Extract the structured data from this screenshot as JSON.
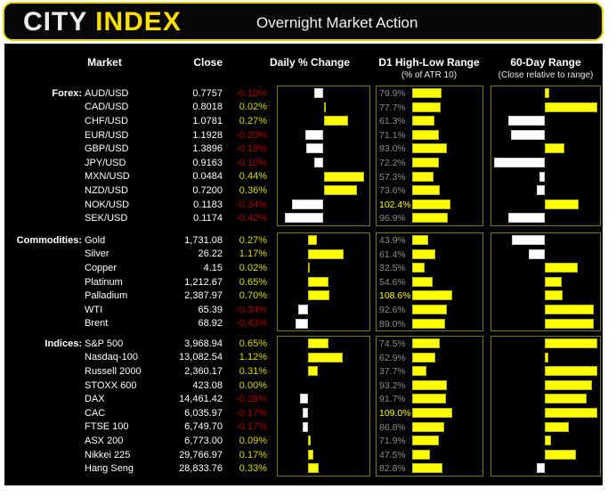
{
  "header": {
    "logo_primary": "CITY",
    "logo_accent": "INDEX",
    "title": "Overnight Market Action"
  },
  "columns": {
    "market": "Market",
    "close": "Close",
    "daily": "Daily % Change",
    "d1": "D1 High-Low Range",
    "d1_sub": "(% of ATR 10)",
    "range60": "60-Day Range",
    "range60_sub": "(Close relative to range)"
  },
  "colors": {
    "accent_yellow": "#ffdf00",
    "bar_positive": "#ffff00",
    "bar_negative": "#fdfdfd",
    "text_positive": "#dcdc00",
    "text_negative": "#b00000",
    "atr_label_gray": "#8c8c8c",
    "box_border": "#7b7b00",
    "background": "#000000"
  },
  "chart_data": {
    "type": "bar",
    "title": "Overnight Market Action",
    "legend": "none",
    "grid": false,
    "atr_axis": [
      0,
      190
    ],
    "range_axis": [
      0,
      100
    ],
    "range_center": 50,
    "sections": [
      {
        "label": "Forex:",
        "daily_axis": [
          -0.5,
          0.5
        ],
        "rows": [
          {
            "market": "AUD/USD",
            "close": "0.7757",
            "change": -0.1,
            "change_label": "-0.10%",
            "atr": 79.9,
            "range_pos": 54
          },
          {
            "market": "CAD/USD",
            "close": "0.8018",
            "change": 0.02,
            "change_label": "0.02%",
            "atr": 77.7,
            "range_pos": 100
          },
          {
            "market": "CHF/USD",
            "close": "1.0781",
            "change": 0.27,
            "change_label": "0.27%",
            "atr": 61.3,
            "range_pos": 15
          },
          {
            "market": "EUR/USD",
            "close": "1.1928",
            "change": -0.2,
            "change_label": "-0.20%",
            "atr": 71.1,
            "range_pos": 18
          },
          {
            "market": "GBP/USD",
            "close": "1.3896",
            "change": -0.19,
            "change_label": "-0.19%",
            "atr": 93.0,
            "range_pos": 69
          },
          {
            "market": "JPY/USD",
            "close": "0.9163",
            "change": -0.1,
            "change_label": "-0.10%",
            "atr": 72.2,
            "range_pos": 2
          },
          {
            "market": "MXN/USD",
            "close": "0.0484",
            "change": 0.44,
            "change_label": "0.44%",
            "atr": 57.3,
            "range_pos": 45
          },
          {
            "market": "NZD/USD",
            "close": "0.7200",
            "change": 0.36,
            "change_label": "0.36%",
            "atr": 73.6,
            "range_pos": 42
          },
          {
            "market": "NOK/USD",
            "close": "0.1183",
            "change": -0.34,
            "change_label": "-0.34%",
            "atr": 102.4,
            "range_pos": 82
          },
          {
            "market": "SEK/USD",
            "close": "0.1174",
            "change": -0.42,
            "change_label": "-0.42%",
            "atr": 96.9,
            "range_pos": 15
          }
        ]
      },
      {
        "label": "Commodities:",
        "daily_axis": [
          -1,
          2
        ],
        "rows": [
          {
            "market": "Gold",
            "close": "1,731.08",
            "change": 0.27,
            "change_label": "0.27%",
            "atr": 43.9,
            "range_pos": 19
          },
          {
            "market": "Silver",
            "close": "26.22",
            "change": 1.17,
            "change_label": "1.17%",
            "atr": 61.4,
            "range_pos": 35
          },
          {
            "market": "Copper",
            "close": "4.15",
            "change": 0.02,
            "change_label": "0.02%",
            "atr": 32.5,
            "range_pos": 81
          },
          {
            "market": "Platinum",
            "close": "1,212.67",
            "change": 0.65,
            "change_label": "0.65%",
            "atr": 54.6,
            "range_pos": 66
          },
          {
            "market": "Palladium",
            "close": "2,387.97",
            "change": 0.7,
            "change_label": "0.70%",
            "atr": 108.6,
            "range_pos": 67
          },
          {
            "market": "WTI",
            "close": "65.39",
            "change": -0.34,
            "change_label": "-0.34%",
            "atr": 92.6,
            "range_pos": 97
          },
          {
            "market": "Brent",
            "close": "68.92",
            "change": -0.43,
            "change_label": "-0.43%",
            "atr": 89.0,
            "range_pos": 97
          }
        ]
      },
      {
        "label": "Indices:",
        "daily_axis": [
          -1,
          2
        ],
        "rows": [
          {
            "market": "S&P 500",
            "close": "3,968.94",
            "change": 0.65,
            "change_label": "0.65%",
            "atr": 74.5,
            "range_pos": 100
          },
          {
            "market": "Nasdaq-100",
            "close": "13,082.54",
            "change": 1.12,
            "change_label": "1.12%",
            "atr": 62.9,
            "range_pos": 53
          },
          {
            "market": "Russell 2000",
            "close": "2,360.17",
            "change": 0.31,
            "change_label": "0.31%",
            "atr": 37.7,
            "range_pos": 100
          },
          {
            "market": "STOXX 600",
            "close": "423.08",
            "change": 0.0,
            "change_label": "0.00%",
            "atr": 93.2,
            "range_pos": 95
          },
          {
            "market": "DAX",
            "close": "14,461.42",
            "change": -0.28,
            "change_label": "-0.28%",
            "atr": 91.7,
            "range_pos": 90
          },
          {
            "market": "CAC",
            "close": "6,035.97",
            "change": -0.17,
            "change_label": "-0.17%",
            "atr": 109.0,
            "range_pos": 100
          },
          {
            "market": "FTSE 100",
            "close": "6,749.70",
            "change": -0.17,
            "change_label": "-0.17%",
            "atr": 86.8,
            "range_pos": 73
          },
          {
            "market": "ASX 200",
            "close": "6,773.00",
            "change": 0.09,
            "change_label": "0.09%",
            "atr": 71.9,
            "range_pos": 56
          },
          {
            "market": "Nikkei 225",
            "close": "29,766.97",
            "change": 0.17,
            "change_label": "0.17%",
            "atr": 47.5,
            "range_pos": 80
          },
          {
            "market": "Hang Seng",
            "close": "28,833.76",
            "change": 0.33,
            "change_label": "0.33%",
            "atr": 82.8,
            "range_pos": 42
          }
        ]
      }
    ]
  }
}
